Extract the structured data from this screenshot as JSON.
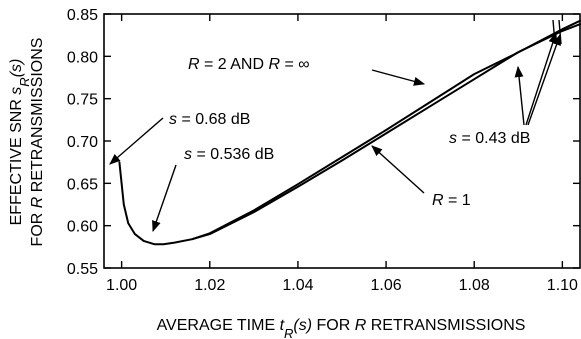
{
  "chart_data": {
    "type": "line",
    "xlabel_parts": [
      "AVERAGE TIME ",
      "t",
      "R",
      "(s)",
      " FOR ",
      "R",
      " RETRANSMISSIONS"
    ],
    "ylabel_line1_parts": [
      "EFFECTIVE SNR ",
      "s",
      "R",
      "(s)"
    ],
    "ylabel_line2_parts": [
      "FOR ",
      "R",
      " RETRANSMISSIONS"
    ],
    "xlim": [
      0.996,
      1.104
    ],
    "ylim": [
      0.55,
      0.85
    ],
    "x_ticks": [
      1.0,
      1.02,
      1.04,
      1.06,
      1.08,
      1.1
    ],
    "x_tick_labels": [
      "1.00",
      "1.02",
      "1.04",
      "1.06",
      "1.08",
      "1.10"
    ],
    "y_ticks": [
      0.55,
      0.6,
      0.65,
      0.7,
      0.75,
      0.8,
      0.85
    ],
    "y_tick_labels": [
      "0.55",
      "0.60",
      "0.65",
      "0.70",
      "0.75",
      "0.80",
      "0.85"
    ],
    "grid": false,
    "series": [
      {
        "name": "R = 1",
        "x": [
          0.9995,
          1.0005,
          1.0015,
          1.003,
          1.005,
          1.0075,
          1.0095,
          1.012,
          1.016,
          1.02,
          1.03,
          1.04,
          1.05,
          1.06,
          1.07,
          1.08,
          1.09,
          1.1,
          1.104
        ],
        "y": [
          0.675,
          0.625,
          0.603,
          0.59,
          0.582,
          0.578,
          0.578,
          0.58,
          0.584,
          0.59,
          0.616,
          0.646,
          0.677,
          0.709,
          0.741,
          0.773,
          0.805,
          0.83,
          0.838
        ]
      },
      {
        "name": "R = 2 AND R = ∞",
        "x": [
          1.016,
          1.02,
          1.03,
          1.04,
          1.05,
          1.06,
          1.07,
          1.08,
          1.089,
          1.1,
          1.104
        ],
        "y": [
          0.584,
          0.591,
          0.618,
          0.649,
          0.681,
          0.713,
          0.746,
          0.779,
          0.802,
          0.832,
          0.842
        ]
      }
    ],
    "annotations": [
      {
        "text_parts": [
          "R",
          " = 2 AND ",
          "R",
          " = ∞"
        ]
      },
      {
        "text_parts": [
          "s",
          " = 0.68 dB"
        ]
      },
      {
        "text_parts": [
          "s",
          " = 0.536 dB"
        ]
      },
      {
        "text_parts": [
          "s",
          " = 0.43 dB"
        ]
      },
      {
        "text_parts": [
          "R",
          " = 1"
        ]
      }
    ]
  }
}
